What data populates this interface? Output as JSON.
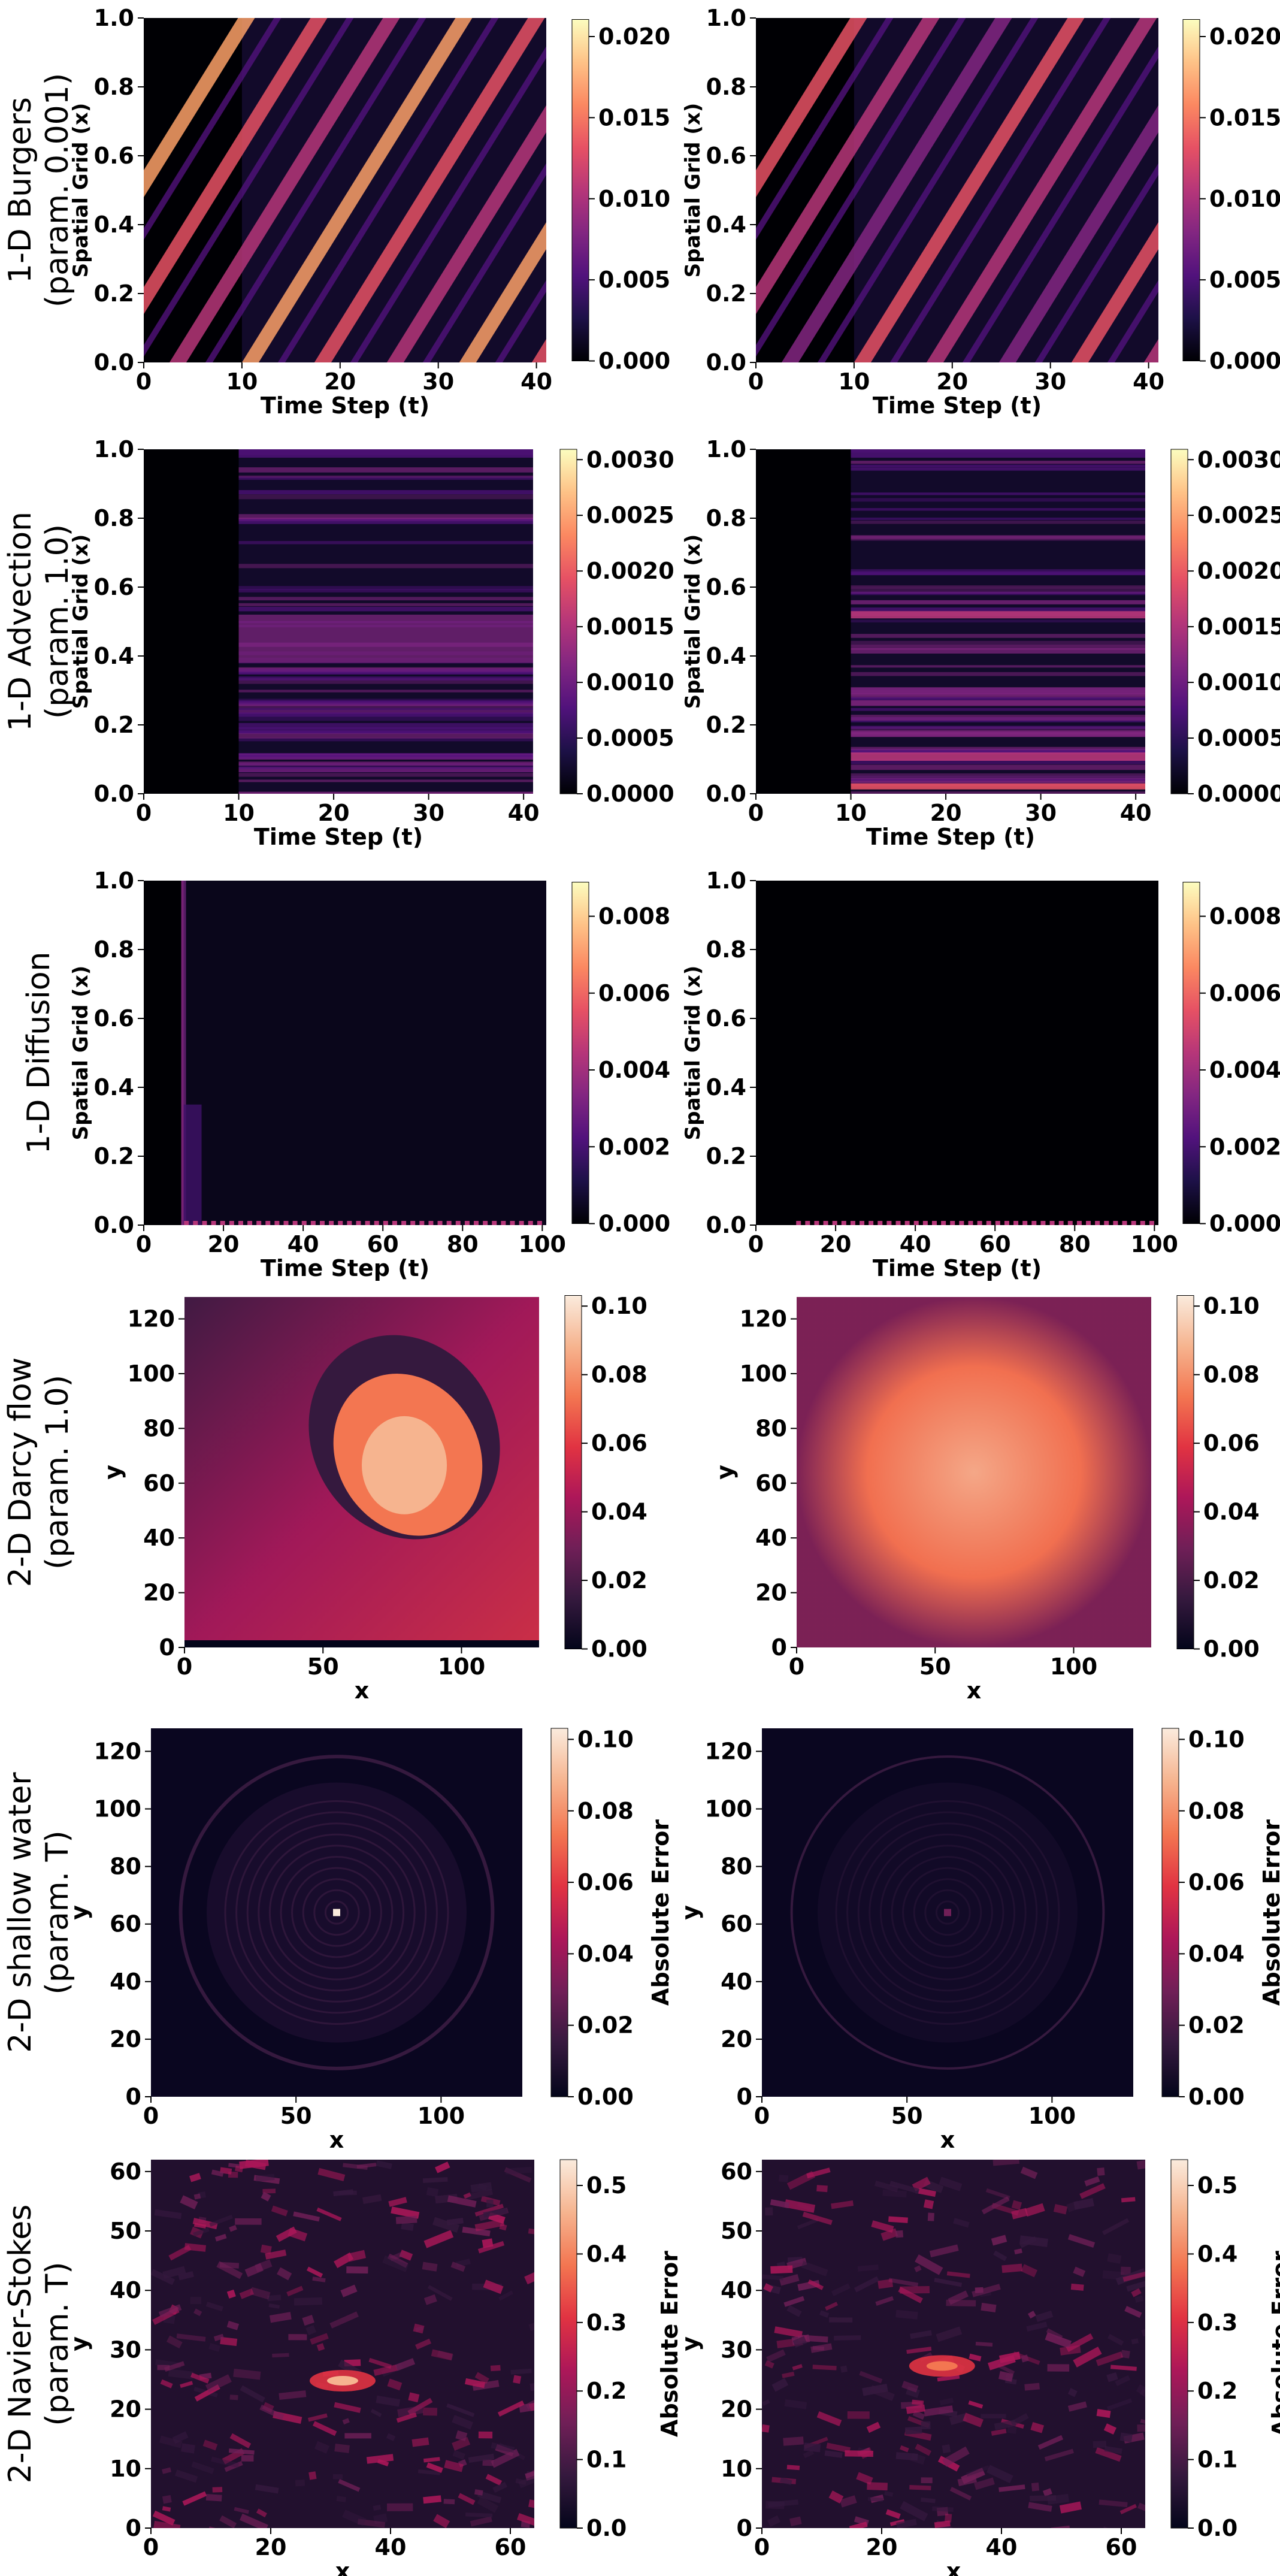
{
  "colormaps": {
    "magma": [
      "#000004",
      "#1d1147",
      "#51127c",
      "#822681",
      "#b63679",
      "#e65164",
      "#fb8861",
      "#fec287",
      "#fcfdbf"
    ],
    "rocket": [
      "#03051a",
      "#35193e",
      "#701f57",
      "#ad1759",
      "#e13342",
      "#f37651",
      "#f6b48f",
      "#faebdd"
    ]
  },
  "rows": [
    {
      "row_label": [
        "1-D Burgers",
        "(param. 0.001)"
      ],
      "xlabel": "Time Step (t)",
      "ylabel": "Spatial Grid (x)",
      "cbar_label": "",
      "xticks": [
        "0",
        "10",
        "20",
        "30",
        "40"
      ],
      "yticks": [
        "0.0",
        "0.2",
        "0.4",
        "0.6",
        "0.8",
        "1.0"
      ],
      "cbar_ticks": [
        "0.000",
        "0.005",
        "0.010",
        "0.015",
        "0.020"
      ],
      "cmap": "magma",
      "grid": "off",
      "legend": "none"
    },
    {
      "row_label": [
        "1-D Advection",
        "(param. 1.0)"
      ],
      "xlabel": "Time Step (t)",
      "ylabel": "Spatial Grid (x)",
      "cbar_label": "",
      "xticks": [
        "0",
        "10",
        "20",
        "30",
        "40"
      ],
      "yticks": [
        "0.0",
        "0.2",
        "0.4",
        "0.6",
        "0.8",
        "1.0"
      ],
      "cbar_ticks": [
        "0.0000",
        "0.0005",
        "0.0010",
        "0.0015",
        "0.0020",
        "0.0025",
        "0.0030"
      ],
      "cmap": "magma",
      "grid": "off",
      "legend": "none"
    },
    {
      "row_label": [
        "1-D Diffusion"
      ],
      "xlabel": "Time Step (t)",
      "ylabel": "Spatial Grid (x)",
      "cbar_label": "",
      "xticks": [
        "0",
        "20",
        "40",
        "60",
        "80",
        "100"
      ],
      "yticks": [
        "0.0",
        "0.2",
        "0.4",
        "0.6",
        "0.8",
        "1.0"
      ],
      "cbar_ticks": [
        "0.000",
        "0.002",
        "0.004",
        "0.006",
        "0.008"
      ],
      "cmap": "magma",
      "grid": "off",
      "legend": "none"
    },
    {
      "row_label": [
        "2-D Darcy flow",
        "(param. 1.0)"
      ],
      "xlabel": "x",
      "ylabel": "y",
      "cbar_label": "",
      "xticks": [
        "0",
        "50",
        "100"
      ],
      "yticks": [
        "0",
        "20",
        "40",
        "60",
        "80",
        "100",
        "120"
      ],
      "cbar_ticks": [
        "0.00",
        "0.02",
        "0.04",
        "0.06",
        "0.08",
        "0.10"
      ],
      "cmap": "rocket",
      "grid": "off",
      "legend": "none"
    },
    {
      "row_label": [
        "2-D shallow water",
        "(param. T)"
      ],
      "xlabel": "x",
      "ylabel": "y",
      "cbar_label": "Absolute Error",
      "xticks": [
        "0",
        "50",
        "100"
      ],
      "yticks": [
        "0",
        "20",
        "40",
        "60",
        "80",
        "100",
        "120"
      ],
      "cbar_ticks": [
        "0.00",
        "0.02",
        "0.04",
        "0.06",
        "0.08",
        "0.10"
      ],
      "cmap": "rocket",
      "grid": "off",
      "legend": "none"
    },
    {
      "row_label": [
        "2-D Navier-Stokes",
        "(param. T)"
      ],
      "xlabel": "x",
      "ylabel": "y",
      "cbar_label": "Absolute Error",
      "xticks": [
        "0",
        "20",
        "40",
        "60"
      ],
      "yticks": [
        "0",
        "10",
        "20",
        "30",
        "40",
        "50",
        "60"
      ],
      "cbar_ticks": [
        "0.0",
        "0.1",
        "0.2",
        "0.3",
        "0.4",
        "0.5"
      ],
      "cmap": "rocket",
      "grid": "off",
      "legend": "none"
    }
  ],
  "chart_data": [
    {
      "type": "heatmap",
      "panel": "1-D Burgers, left",
      "xlabel": "Time Step (t)",
      "ylabel": "Spatial Grid (x)",
      "xlim": [
        0,
        41
      ],
      "ylim": [
        0.0,
        1.0
      ],
      "clim": [
        0.0,
        0.023
      ],
      "masked_until_t": 10,
      "pattern": "diagonal traveling bands"
    },
    {
      "type": "heatmap",
      "panel": "1-D Burgers, right",
      "xlabel": "Time Step (t)",
      "ylabel": "Spatial Grid (x)",
      "xlim": [
        0,
        41
      ],
      "ylim": [
        0.0,
        1.0
      ],
      "clim": [
        0.0,
        0.023
      ],
      "masked_until_t": 10,
      "pattern": "diagonal traveling bands, weaker"
    },
    {
      "type": "heatmap",
      "panel": "1-D Advection, left",
      "xlabel": "Time Step (t)",
      "ylabel": "Spatial Grid (x)",
      "xlim": [
        0,
        41
      ],
      "ylim": [
        0.0,
        1.0
      ],
      "clim": [
        0.0,
        0.0031
      ],
      "masked_until_t": 10,
      "pattern": "horizontal band near x=0.45"
    },
    {
      "type": "heatmap",
      "panel": "1-D Advection, right",
      "xlabel": "Time Step (t)",
      "ylabel": "Spatial Grid (x)",
      "xlim": [
        0,
        41
      ],
      "ylim": [
        0.0,
        1.0
      ],
      "clim": [
        0.0,
        0.0031
      ],
      "masked_until_t": 10,
      "pattern": "horizontal streaks, bright near x=0.05 and x=0.5"
    },
    {
      "type": "heatmap",
      "panel": "1-D Diffusion, left",
      "xlabel": "Time Step (t)",
      "ylabel": "Spatial Grid (x)",
      "xlim": [
        0,
        101
      ],
      "ylim": [
        0.0,
        1.0
      ],
      "clim": [
        0.0,
        0.009
      ],
      "pattern": "error concentrated near t=10"
    },
    {
      "type": "heatmap",
      "panel": "1-D Diffusion, right",
      "xlabel": "Time Step (t)",
      "ylabel": "Spatial Grid (x)",
      "xlim": [
        0,
        101
      ],
      "ylim": [
        0.0,
        1.0
      ],
      "clim": [
        0.0,
        0.009
      ],
      "pattern": "near-zero except boundary at x=0"
    },
    {
      "type": "heatmap",
      "panel": "2-D Darcy flow, left",
      "xlabel": "x",
      "ylabel": "y",
      "xlim": [
        0,
        128
      ],
      "ylim": [
        0,
        128
      ],
      "clim": [
        0.0,
        0.103
      ],
      "pattern": "elliptical high-error region"
    },
    {
      "type": "heatmap",
      "panel": "2-D Darcy flow, right",
      "xlabel": "x",
      "ylabel": "y",
      "xlim": [
        0,
        128
      ],
      "ylim": [
        0,
        128
      ],
      "clim": [
        0.0,
        0.103
      ],
      "pattern": "broad moderate error"
    },
    {
      "type": "heatmap",
      "panel": "2-D shallow water, left",
      "xlabel": "x",
      "ylabel": "y",
      "xlim": [
        0,
        128
      ],
      "ylim": [
        0,
        128
      ],
      "clim": [
        0.0,
        0.103
      ],
      "pattern": "ring pattern with central spot"
    },
    {
      "type": "heatmap",
      "panel": "2-D shallow water, right",
      "xlabel": "x",
      "ylabel": "y",
      "xlim": [
        0,
        128
      ],
      "ylim": [
        0,
        128
      ],
      "clim": [
        0.0,
        0.103
      ],
      "pattern": "faint ring pattern with central spot"
    },
    {
      "type": "heatmap",
      "panel": "2-D Navier-Stokes, left",
      "xlabel": "x",
      "ylabel": "y",
      "xlim": [
        0,
        64
      ],
      "ylim": [
        0,
        62
      ],
      "clim": [
        0.0,
        0.54
      ],
      "pattern": "turbulent streaks, peak near (32, 25)"
    },
    {
      "type": "heatmap",
      "panel": "2-D Navier-Stokes, right",
      "xlabel": "x",
      "ylabel": "y",
      "xlim": [
        0,
        64
      ],
      "ylim": [
        0,
        62
      ],
      "clim": [
        0.0,
        0.54
      ],
      "pattern": "turbulent streaks, peak near (30, 27)"
    }
  ]
}
